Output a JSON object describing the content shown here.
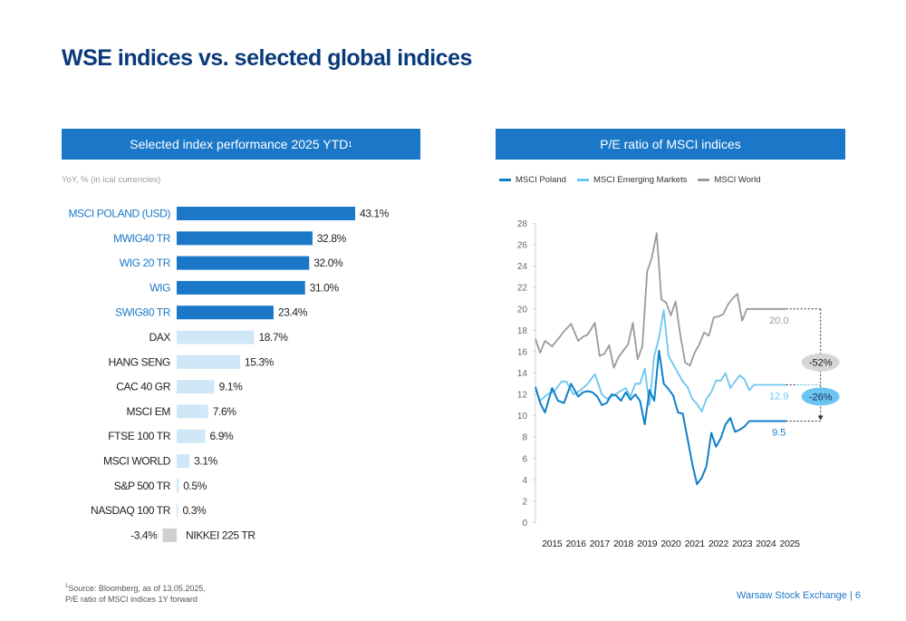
{
  "page": {
    "title": "WSE indices vs. selected global indices",
    "left_banner": "Selected index performance 2025 YTD",
    "left_banner_sup": "1",
    "right_banner": "P/E ratio of MSCI indices",
    "subnote": "YoY, % (in ical currencies)",
    "footnote_sup": "1",
    "footnote_line1": "Source: Bloomberg, as of 13.05.2025,",
    "footnote_line2": "P/E ratio of MSCI  indices 1Y forward",
    "footer": "Warsaw Stock Exchange | 6"
  },
  "colors": {
    "brand_dark": "#0a3a7a",
    "bar_highlight": "#1b78c8",
    "bar_light": "#cfe7f7",
    "bar_negative": "#d0d0d0",
    "label_highlight": "#1b78c8",
    "line_poland": "#0f7fc9",
    "line_em": "#6cc5f0",
    "line_world": "#9a9a9a"
  },
  "chart_data": [
    {
      "type": "bar",
      "orientation": "horizontal",
      "categories": [
        "MSCI POLAND (USD)",
        "MWIG40 TR",
        "WIG 20 TR",
        "WIG",
        "SWIG80 TR",
        "DAX",
        "HANG SENG",
        "CAC 40 GR",
        "MSCI EM",
        "FTSE 100 TR",
        "MSCI WORLD",
        "S&P 500 TR",
        "NASDAQ 100 TR",
        "NIKKEI 225 TR"
      ],
      "values": [
        43.1,
        32.8,
        32.0,
        31.0,
        23.4,
        18.7,
        15.3,
        9.1,
        7.6,
        6.9,
        3.1,
        0.5,
        0.3,
        -3.4
      ],
      "value_labels": [
        "43.1%",
        "32.8%",
        "32.0%",
        "31.0%",
        "23.4%",
        "18.7%",
        "15.3%",
        "9.1%",
        "7.6%",
        "6.9%",
        "3.1%",
        "0.5%",
        "0.3%",
        "-3.4%"
      ],
      "highlighted": [
        true,
        true,
        true,
        true,
        true,
        false,
        false,
        false,
        false,
        false,
        false,
        false,
        false,
        false
      ]
    },
    {
      "type": "line",
      "x_ticks": [
        "2015",
        "2016",
        "2017",
        "2018",
        "2019",
        "2020",
        "2021",
        "2022",
        "2023",
        "2024",
        "2025"
      ],
      "y_ticks": [
        "0",
        "2",
        "4",
        "6",
        "8",
        "10",
        "12",
        "14",
        "16",
        "18",
        "20",
        "22",
        "24",
        "26",
        "28"
      ],
      "ylim": [
        0,
        28
      ],
      "xlim": [
        2014.8,
        2025.4
      ],
      "grid": false,
      "legend_position": "top-left",
      "series": [
        {
          "name": "MSCI Poland",
          "x": [
            2014.8,
            2015.0,
            2015.2,
            2015.5,
            2015.75,
            2016.0,
            2016.3,
            2016.6,
            2016.8,
            2017.0,
            2017.2,
            2017.4,
            2017.6,
            2017.8,
            2018.0,
            2018.2,
            2018.4,
            2018.6,
            2018.8,
            2019.0,
            2019.2,
            2019.4,
            2019.6,
            2019.8,
            2020.0,
            2020.2,
            2020.4,
            2020.6,
            2020.8,
            2021.0,
            2021.2,
            2021.4,
            2021.6,
            2021.8,
            2022.0,
            2022.2,
            2022.4,
            2022.6,
            2022.8,
            2023.0,
            2023.2,
            2023.4,
            2023.6,
            2023.8,
            2024.0,
            2024.2,
            2024.4,
            2024.6,
            2024.8,
            2025.0,
            2025.2,
            2025.35
          ],
          "y": [
            12.7,
            11.2,
            10.3,
            12.6,
            11.4,
            11.2,
            13.0,
            11.8,
            12.2,
            12.3,
            12.2,
            11.8,
            11.0,
            11.2,
            12.0,
            11.9,
            11.4,
            12.2,
            11.5,
            12.0,
            11.4,
            9.2,
            12.4,
            11.4,
            16.1,
            13.0,
            12.5,
            11.9,
            10.3,
            10.2,
            7.9,
            5.5,
            3.6,
            4.2,
            5.3,
            8.4,
            7.1,
            7.9,
            9.2,
            9.8,
            8.5,
            8.7,
            9.0,
            9.5,
            9.5,
            9.5,
            9.5,
            9.5,
            9.5,
            9.5,
            9.5,
            9.5
          ]
        },
        {
          "name": "MSCI Emerging Markets",
          "x": [
            2014.8,
            2015.0,
            2015.3,
            2015.6,
            2015.9,
            2016.1,
            2016.4,
            2016.7,
            2017.0,
            2017.3,
            2017.6,
            2017.8,
            2018.0,
            2018.3,
            2018.6,
            2018.8,
            2019.0,
            2019.2,
            2019.4,
            2019.6,
            2019.8,
            2020.0,
            2020.2,
            2020.4,
            2020.6,
            2020.8,
            2021.0,
            2021.2,
            2021.4,
            2021.6,
            2021.8,
            2022.0,
            2022.2,
            2022.4,
            2022.6,
            2022.8,
            2023.0,
            2023.2,
            2023.4,
            2023.6,
            2023.8,
            2024.0,
            2024.2,
            2024.4,
            2024.6,
            2024.8,
            2025.0,
            2025.2,
            2025.35
          ],
          "y": [
            12.5,
            11.4,
            12.0,
            12.3,
            13.2,
            13.2,
            12.0,
            12.4,
            13.0,
            13.9,
            12.0,
            11.6,
            11.8,
            12.2,
            12.6,
            11.8,
            13.0,
            13.0,
            14.4,
            11.0,
            15.6,
            17.3,
            19.9,
            15.6,
            14.8,
            14.0,
            13.2,
            12.7,
            11.6,
            11.1,
            10.4,
            11.6,
            12.2,
            13.3,
            13.3,
            14.0,
            12.6,
            13.2,
            13.8,
            13.4,
            12.4,
            12.9,
            12.9,
            12.9,
            12.9,
            12.9,
            12.9,
            12.9,
            12.9
          ]
        },
        {
          "name": "MSCI World",
          "x": [
            2014.8,
            2015.0,
            2015.2,
            2015.5,
            2015.8,
            2016.0,
            2016.3,
            2016.6,
            2016.8,
            2017.0,
            2017.3,
            2017.5,
            2017.7,
            2017.9,
            2018.1,
            2018.3,
            2018.5,
            2018.7,
            2018.9,
            2019.1,
            2019.3,
            2019.5,
            2019.7,
            2019.9,
            2020.1,
            2020.3,
            2020.5,
            2020.7,
            2020.9,
            2021.1,
            2021.3,
            2021.5,
            2021.7,
            2021.9,
            2022.1,
            2022.3,
            2022.5,
            2022.7,
            2022.9,
            2023.1,
            2023.3,
            2023.5,
            2023.7,
            2023.9,
            2024.1,
            2024.3,
            2024.5,
            2024.7,
            2024.9,
            2025.1,
            2025.35
          ],
          "y": [
            17.2,
            15.9,
            17.0,
            16.5,
            17.3,
            17.9,
            18.6,
            17.0,
            17.4,
            17.6,
            18.7,
            15.6,
            15.8,
            16.6,
            14.5,
            15.5,
            16.1,
            16.7,
            18.7,
            15.3,
            16.5,
            23.5,
            24.8,
            27.1,
            20.9,
            20.6,
            19.4,
            20.7,
            17.5,
            15.0,
            14.7,
            15.9,
            16.7,
            17.8,
            17.5,
            19.2,
            19.3,
            19.5,
            20.4,
            21.0,
            21.4,
            18.9,
            20.0,
            20.0,
            20.0,
            20.0,
            20.0,
            20.0,
            20.0,
            20.0,
            20.0
          ]
        }
      ],
      "annotations": {
        "end_labels": [
          "20.0",
          "12.9",
          "9.5"
        ],
        "diff_labels": [
          "-52%",
          "-26%"
        ]
      }
    }
  ]
}
